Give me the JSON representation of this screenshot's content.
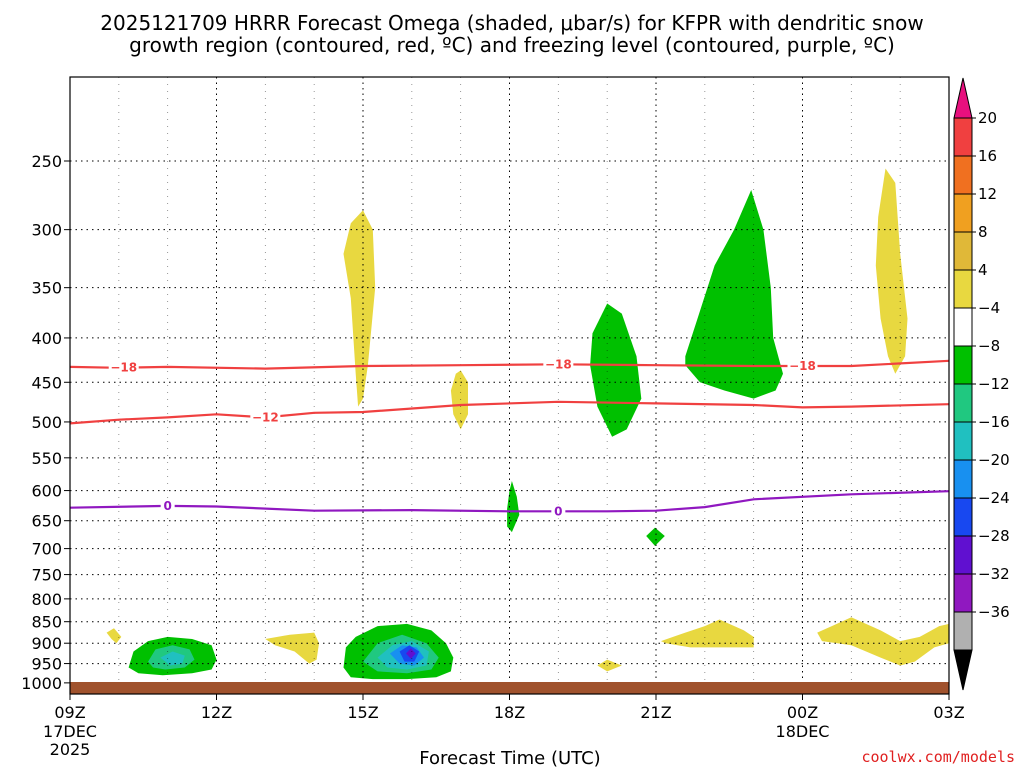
{
  "chart_data": {
    "type": "heatmap",
    "title_line1": "2025121709 HRRR Forecast Omega (shaded, μbar/s) for KFPR with dendritic snow",
    "title_line2": "growth region (contoured, red, ºC) and freezing level (contoured, purple, ºC)",
    "xlabel": "Forecast Time (UTC)",
    "ylabel": "",
    "credit": "coolwx.com/models",
    "x_range_hours": [
      0,
      18
    ],
    "x_ticks": [
      {
        "h": 0,
        "label": "09Z",
        "sub1": "17DEC",
        "sub2": "2025"
      },
      {
        "h": 3,
        "label": "12Z",
        "sub1": "",
        "sub2": ""
      },
      {
        "h": 6,
        "label": "15Z",
        "sub1": "",
        "sub2": ""
      },
      {
        "h": 9,
        "label": "18Z",
        "sub1": "",
        "sub2": ""
      },
      {
        "h": 12,
        "label": "21Z",
        "sub1": "",
        "sub2": ""
      },
      {
        "h": 15,
        "label": "00Z",
        "sub1": "18DEC",
        "sub2": ""
      },
      {
        "h": 18,
        "label": "03Z",
        "sub1": "",
        "sub2": ""
      }
    ],
    "y_axis_type": "log-pressure",
    "y_range_hpa": [
      200,
      1030
    ],
    "y_ticks": [
      250,
      300,
      350,
      400,
      450,
      500,
      550,
      600,
      650,
      700,
      750,
      800,
      850,
      900,
      950,
      1000
    ],
    "colorbar": {
      "labels": [
        "20",
        "16",
        "12",
        "8",
        "4",
        "−4",
        "−8",
        "−12",
        "−16",
        "−20",
        "−24",
        "−28",
        "−32",
        "−36"
      ],
      "colors": [
        "#e8107e",
        "#f04040",
        "#f07020",
        "#f0a020",
        "#e0b838",
        "#e8d840",
        "#ffffff",
        "#00c000",
        "#20c880",
        "#20c0c0",
        "#1890f0",
        "#1848f0",
        "#6010d0",
        "#9018c0",
        "#b0b0b0",
        "#000000"
      ]
    },
    "contour_lines": [
      {
        "name": "dgz-minus18",
        "value": "-18",
        "color": "#f04040",
        "points": [
          [
            0,
            432
          ],
          [
            1,
            433
          ],
          [
            2,
            432
          ],
          [
            4,
            434
          ],
          [
            6,
            431
          ],
          [
            8,
            430
          ],
          [
            10,
            429
          ],
          [
            12,
            430
          ],
          [
            14,
            431
          ],
          [
            16,
            431
          ],
          [
            18,
            425
          ]
        ],
        "labels": [
          {
            "h": 1.1,
            "text": "−18"
          },
          {
            "h": 10.0,
            "text": "−18"
          },
          {
            "h": 15.0,
            "text": "−18"
          }
        ]
      },
      {
        "name": "dgz-minus12",
        "value": "-12",
        "color": "#f04040",
        "points": [
          [
            0,
            502
          ],
          [
            1,
            497
          ],
          [
            2,
            494
          ],
          [
            3,
            490
          ],
          [
            4,
            494
          ],
          [
            5,
            488
          ],
          [
            6,
            487
          ],
          [
            8,
            478
          ],
          [
            10,
            474
          ],
          [
            12,
            476
          ],
          [
            14,
            478
          ],
          [
            15,
            481
          ],
          [
            16,
            480
          ],
          [
            18,
            477
          ]
        ],
        "labels": [
          {
            "h": 4.0,
            "text": "−12"
          }
        ]
      },
      {
        "name": "freezing-level-0",
        "value": "0",
        "color": "#9018c0",
        "points": [
          [
            0,
            628
          ],
          [
            2,
            625
          ],
          [
            3,
            626
          ],
          [
            5,
            633
          ],
          [
            7,
            632
          ],
          [
            9,
            634
          ],
          [
            11,
            634
          ],
          [
            12,
            633
          ],
          [
            13,
            627
          ],
          [
            14,
            614
          ],
          [
            16,
            606
          ],
          [
            18,
            601
          ]
        ],
        "labels": [
          {
            "h": 2.0,
            "text": "0"
          },
          {
            "h": 10.0,
            "text": "0"
          }
        ]
      }
    ],
    "omega_regions": [
      {
        "name": "omega-yellow-upper-15z",
        "omega": 5,
        "color": "#e8d840",
        "points": [
          [
            5.6,
            320
          ],
          [
            5.75,
            295
          ],
          [
            6.0,
            285
          ],
          [
            6.2,
            300
          ],
          [
            6.25,
            350
          ],
          [
            6.1,
            430
          ],
          [
            6.0,
            470
          ],
          [
            5.9,
            480
          ],
          [
            5.85,
            440
          ],
          [
            5.75,
            360
          ]
        ]
      },
      {
        "name": "omega-yellow-mid-17z",
        "omega": 5,
        "color": "#e8d840",
        "points": [
          [
            7.8,
            460
          ],
          [
            7.9,
            440
          ],
          [
            8.0,
            436
          ],
          [
            8.15,
            450
          ],
          [
            8.15,
            490
          ],
          [
            8.0,
            510
          ],
          [
            7.85,
            490
          ]
        ]
      },
      {
        "name": "omega-yellow-upper-02z",
        "omega": 5,
        "color": "#e8d840",
        "points": [
          [
            16.5,
            330
          ],
          [
            16.55,
            290
          ],
          [
            16.7,
            255
          ],
          [
            16.9,
            265
          ],
          [
            17.0,
            320
          ],
          [
            17.15,
            380
          ],
          [
            17.1,
            420
          ],
          [
            16.9,
            440
          ],
          [
            16.75,
            420
          ],
          [
            16.6,
            380
          ]
        ]
      },
      {
        "name": "omega-green-upper-20z",
        "omega": -6,
        "color": "#00c000",
        "points": [
          [
            10.7,
            395
          ],
          [
            11.0,
            365
          ],
          [
            11.3,
            375
          ],
          [
            11.6,
            420
          ],
          [
            11.7,
            470
          ],
          [
            11.4,
            510
          ],
          [
            11.1,
            520
          ],
          [
            10.8,
            480
          ],
          [
            10.65,
            430
          ]
        ]
      },
      {
        "name": "omega-green-upper-23z",
        "omega": -6,
        "color": "#00c000",
        "points": [
          [
            12.6,
            420
          ],
          [
            12.85,
            380
          ],
          [
            13.2,
            330
          ],
          [
            13.6,
            300
          ],
          [
            13.95,
            270
          ],
          [
            14.2,
            300
          ],
          [
            14.35,
            350
          ],
          [
            14.4,
            400
          ],
          [
            14.6,
            440
          ],
          [
            14.45,
            460
          ],
          [
            14.0,
            470
          ],
          [
            13.4,
            460
          ],
          [
            12.9,
            450
          ],
          [
            12.6,
            430
          ]
        ]
      },
      {
        "name": "omega-green-small-18z",
        "omega": -6,
        "color": "#00c000",
        "points": [
          [
            8.95,
            630
          ],
          [
            9.0,
            600
          ],
          [
            9.05,
            585
          ],
          [
            9.15,
            610
          ],
          [
            9.2,
            640
          ],
          [
            9.05,
            670
          ],
          [
            8.95,
            660
          ]
        ]
      },
      {
        "name": "omega-green-small-21z",
        "omega": -6,
        "color": "#00c000",
        "points": [
          [
            11.8,
            677
          ],
          [
            11.98,
            662
          ],
          [
            12.18,
            677
          ],
          [
            11.98,
            695
          ]
        ]
      },
      {
        "name": "omega-yellow-low-0930z",
        "omega": 5,
        "color": "#e8d840",
        "points": [
          [
            0.75,
            875
          ],
          [
            0.9,
            865
          ],
          [
            1.05,
            885
          ],
          [
            0.95,
            900
          ],
          [
            0.85,
            890
          ]
        ]
      },
      {
        "name": "omega-green-low-11z",
        "omega": -6,
        "color": "#00c000",
        "points": [
          [
            1.2,
            960
          ],
          [
            1.3,
            920
          ],
          [
            1.6,
            895
          ],
          [
            2.0,
            885
          ],
          [
            2.5,
            890
          ],
          [
            2.9,
            905
          ],
          [
            3.0,
            940
          ],
          [
            2.9,
            965
          ],
          [
            2.5,
            975
          ],
          [
            1.9,
            980
          ],
          [
            1.4,
            975
          ]
        ]
      },
      {
        "name": "omega-teal-low-11z",
        "omega": -9,
        "color": "#20c880",
        "points": [
          [
            1.6,
            945
          ],
          [
            1.75,
            915
          ],
          [
            2.1,
            905
          ],
          [
            2.45,
            915
          ],
          [
            2.55,
            940
          ],
          [
            2.35,
            960
          ],
          [
            1.95,
            965
          ],
          [
            1.7,
            960
          ]
        ]
      },
      {
        "name": "omega-cyan-low-11z",
        "omega": -13,
        "color": "#20c0c0",
        "points": [
          [
            1.85,
            935
          ],
          [
            2.1,
            920
          ],
          [
            2.35,
            930
          ],
          [
            2.3,
            950
          ],
          [
            2.05,
            955
          ]
        ]
      },
      {
        "name": "omega-yellow-low-13z",
        "omega": 5,
        "color": "#e8d840",
        "points": [
          [
            4.0,
            890
          ],
          [
            4.5,
            880
          ],
          [
            5.0,
            875
          ],
          [
            5.1,
            900
          ],
          [
            5.05,
            940
          ],
          [
            4.9,
            950
          ],
          [
            4.6,
            920
          ],
          [
            4.2,
            905
          ]
        ]
      },
      {
        "name": "omega-green-low-16z",
        "omega": -6,
        "color": "#00c000",
        "points": [
          [
            5.6,
            960
          ],
          [
            5.65,
            910
          ],
          [
            5.85,
            885
          ],
          [
            6.3,
            860
          ],
          [
            6.9,
            855
          ],
          [
            7.4,
            870
          ],
          [
            7.7,
            900
          ],
          [
            7.85,
            935
          ],
          [
            7.8,
            970
          ],
          [
            7.5,
            985
          ],
          [
            6.9,
            990
          ],
          [
            6.2,
            990
          ],
          [
            5.75,
            985
          ]
        ]
      },
      {
        "name": "omega-teal-low-16z",
        "omega": -9,
        "color": "#20c880",
        "points": [
          [
            6.0,
            945
          ],
          [
            6.3,
            900
          ],
          [
            6.8,
            880
          ],
          [
            7.3,
            900
          ],
          [
            7.55,
            935
          ],
          [
            7.4,
            965
          ],
          [
            6.9,
            975
          ],
          [
            6.3,
            970
          ]
        ]
      },
      {
        "name": "omega-cyan-low-16z",
        "omega": -13,
        "color": "#20c0c0",
        "points": [
          [
            6.3,
            935
          ],
          [
            6.6,
            905
          ],
          [
            7.0,
            895
          ],
          [
            7.35,
            920
          ],
          [
            7.3,
            955
          ],
          [
            6.9,
            965
          ],
          [
            6.5,
            960
          ]
        ]
      },
      {
        "name": "omega-lightblue-low-16z",
        "omega": -17,
        "color": "#1890f0",
        "points": [
          [
            6.55,
            925
          ],
          [
            6.8,
            905
          ],
          [
            7.1,
            910
          ],
          [
            7.25,
            935
          ],
          [
            7.05,
            955
          ],
          [
            6.75,
            950
          ]
        ]
      },
      {
        "name": "omega-blue-low-16z",
        "omega": -21,
        "color": "#1848f0",
        "points": [
          [
            6.75,
            920
          ],
          [
            6.95,
            905
          ],
          [
            7.15,
            920
          ],
          [
            7.05,
            945
          ],
          [
            6.85,
            945
          ]
        ]
      },
      {
        "name": "omega-purple-low-16z",
        "omega": -25,
        "color": "#6010d0",
        "points": [
          [
            6.88,
            925
          ],
          [
            6.98,
            912
          ],
          [
            7.08,
            925
          ],
          [
            6.98,
            938
          ]
        ]
      },
      {
        "name": "omega-yellow-low-2000z",
        "omega": 5,
        "color": "#e8d840",
        "points": [
          [
            10.8,
            955
          ],
          [
            11.0,
            940
          ],
          [
            11.3,
            955
          ],
          [
            11.0,
            970
          ]
        ]
      },
      {
        "name": "omega-yellow-low-23z",
        "omega": 5,
        "color": "#e8d840",
        "points": [
          [
            12.1,
            895
          ],
          [
            12.6,
            875
          ],
          [
            13.0,
            860
          ],
          [
            13.3,
            845
          ],
          [
            13.8,
            870
          ],
          [
            14.0,
            885
          ],
          [
            14.0,
            910
          ],
          [
            13.4,
            910
          ],
          [
            12.7,
            910
          ],
          [
            12.2,
            900
          ]
        ]
      },
      {
        "name": "omega-yellow-low-02z",
        "omega": 5,
        "color": "#e8d840",
        "points": [
          [
            15.3,
            875
          ],
          [
            15.6,
            860
          ],
          [
            16.0,
            840
          ],
          [
            16.3,
            855
          ],
          [
            16.6,
            870
          ],
          [
            17.0,
            895
          ],
          [
            17.4,
            885
          ],
          [
            17.8,
            860
          ],
          [
            18.0,
            855
          ],
          [
            18.0,
            900
          ],
          [
            17.7,
            910
          ],
          [
            17.3,
            945
          ],
          [
            17.0,
            955
          ],
          [
            16.6,
            935
          ],
          [
            16.0,
            905
          ],
          [
            15.4,
            895
          ]
        ]
      }
    ]
  }
}
